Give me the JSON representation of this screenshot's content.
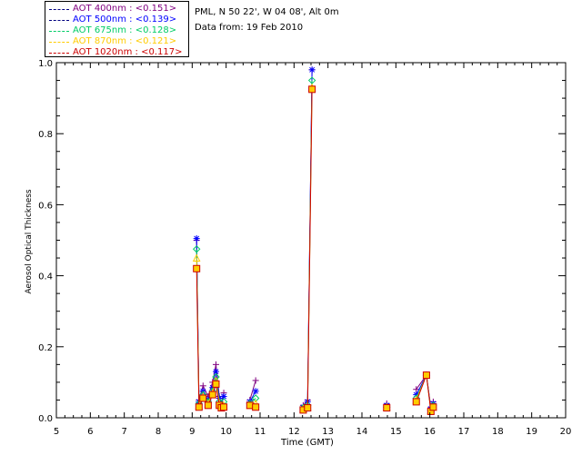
{
  "header": {
    "station": "PML, N 50 22', W 04 08', Alt 0m",
    "date_line": "Data from: 19 Feb 2010"
  },
  "legend": [
    {
      "label_left": "AOT  400nm : ",
      "label_right": "<0.151>",
      "color": "#800080",
      "line_color": "#000080"
    },
    {
      "label_left": "AOT  500nm : ",
      "label_right": "<0.139>",
      "color": "#0000ff",
      "line_color": "#000080"
    },
    {
      "label_left": "AOT  675nm : ",
      "label_right": "<0.128>",
      "color": "#00cc66",
      "line_color": "#000080"
    },
    {
      "label_left": "AOT  870nm : ",
      "label_right": "<0.121>",
      "color": "#ffcc00",
      "line_color": "#000080"
    },
    {
      "label_left": "AOT 1020nm : ",
      "label_right": "<0.117>",
      "color": "#cc0000",
      "line_color": "#000080"
    }
  ],
  "chart_data": {
    "type": "line",
    "xlabel": "Time (GMT)",
    "ylabel": "Aerosol Optical Thickness",
    "xlim": [
      5,
      20
    ],
    "ylim": [
      0,
      1.0
    ],
    "xticks": [
      5,
      6,
      7,
      8,
      9,
      10,
      11,
      12,
      13,
      14,
      15,
      16,
      17,
      18,
      19,
      20
    ],
    "yticks": [
      "0.0",
      "0.2",
      "0.4",
      "0.6",
      "0.8",
      "1.0"
    ],
    "grid": false,
    "legend_position": "top-left",
    "series": [
      {
        "name": "AOT 400nm",
        "color": "#800080",
        "marker": "plus",
        "x": [
          9.13,
          9.2,
          9.32,
          9.47,
          9.6,
          9.7,
          9.8,
          9.86,
          9.93,
          10.7,
          10.87,
          12.27,
          12.4,
          12.53,
          14.73,
          15.6,
          15.9,
          16.03,
          16.1
        ],
        "y": [
          0.5,
          0.05,
          0.09,
          0.06,
          0.1,
          0.15,
          0.06,
          0.04,
          0.07,
          0.05,
          0.105,
          0.035,
          0.05,
          0.98,
          0.04,
          0.08,
          0.12,
          0.03,
          0.045
        ]
      },
      {
        "name": "AOT 500nm",
        "color": "#0000ff",
        "marker": "asterisk",
        "x": [
          9.13,
          9.2,
          9.32,
          9.47,
          9.6,
          9.7,
          9.8,
          9.86,
          9.93,
          10.7,
          10.87,
          12.27,
          12.4,
          12.53,
          14.73,
          15.6,
          15.9,
          16.03,
          16.1
        ],
        "y": [
          0.505,
          0.045,
          0.075,
          0.05,
          0.085,
          0.13,
          0.055,
          0.035,
          0.06,
          0.045,
          0.075,
          0.03,
          0.045,
          0.98,
          0.035,
          0.065,
          0.12,
          0.025,
          0.04
        ]
      },
      {
        "name": "AOT 675nm",
        "color": "#00cc66",
        "marker": "diamond",
        "x": [
          9.13,
          9.2,
          9.32,
          9.47,
          9.6,
          9.7,
          9.8,
          9.86,
          9.93,
          10.7,
          10.87,
          12.27,
          12.4,
          12.53,
          14.73,
          15.6,
          15.9,
          16.03,
          16.1
        ],
        "y": [
          0.475,
          0.04,
          0.065,
          0.045,
          0.075,
          0.115,
          0.045,
          0.03,
          0.045,
          0.04,
          0.055,
          0.028,
          0.035,
          0.95,
          0.03,
          0.055,
          0.12,
          0.022,
          0.035
        ]
      },
      {
        "name": "AOT 870nm",
        "color": "#ffcc00",
        "marker": "triangle",
        "x": [
          9.13,
          9.2,
          9.32,
          9.47,
          9.6,
          9.7,
          9.8,
          9.86,
          9.93,
          10.7,
          10.87,
          12.27,
          12.4,
          12.53,
          14.73,
          15.6,
          15.9,
          16.03,
          16.1
        ],
        "y": [
          0.45,
          0.035,
          0.06,
          0.04,
          0.07,
          0.105,
          0.04,
          0.03,
          0.035,
          0.035,
          0.04,
          0.025,
          0.03,
          0.93,
          0.03,
          0.05,
          0.12,
          0.02,
          0.03
        ]
      },
      {
        "name": "AOT 1020nm",
        "color": "#cc0000",
        "marker": "square",
        "x": [
          9.13,
          9.2,
          9.32,
          9.47,
          9.6,
          9.7,
          9.8,
          9.86,
          9.93,
          10.7,
          10.87,
          12.27,
          12.4,
          12.53,
          14.73,
          15.6,
          15.9,
          16.03,
          16.1
        ],
        "y": [
          0.42,
          0.03,
          0.055,
          0.035,
          0.065,
          0.095,
          0.035,
          0.028,
          0.03,
          0.035,
          0.03,
          0.022,
          0.028,
          0.925,
          0.028,
          0.045,
          0.12,
          0.018,
          0.03
        ]
      }
    ]
  }
}
